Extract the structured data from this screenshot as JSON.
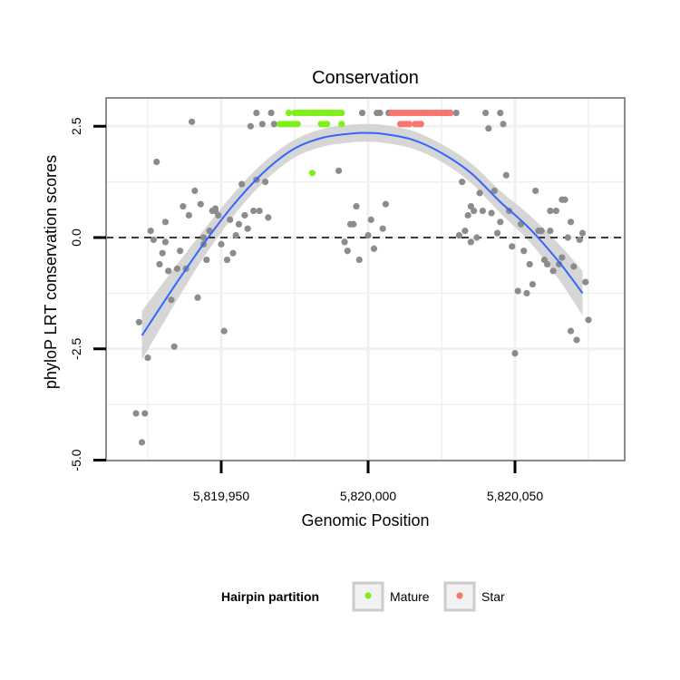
{
  "chart_data": {
    "type": "scatter",
    "title": "Conservation",
    "xlabel": "Genomic Position",
    "ylabel": "phyloP LRT conservation scores",
    "xlim": [
      5819915,
      5820080
    ],
    "ylim": [
      -5,
      3.2
    ],
    "x_ticks": [
      {
        "value": 5819950,
        "label": "5,819,950"
      },
      {
        "value": 5820000,
        "label": "5,820,000"
      },
      {
        "value": 5820050,
        "label": "5,820,050"
      }
    ],
    "y_ticks": [
      {
        "value": 2.5,
        "label": "2.5"
      },
      {
        "value": 0,
        "label": "0.0"
      },
      {
        "value": -2.5,
        "label": "-2.5"
      },
      {
        "value": -5,
        "label": "-5.0"
      }
    ],
    "grid": true,
    "reference_line": {
      "y": 0,
      "style": "dashed"
    },
    "legend": {
      "title": "Hairpin partition",
      "placement": "bottom",
      "entries": [
        {
          "label": "Mature",
          "color": "#7FEF1A"
        },
        {
          "label": "Star",
          "color": "#F8766D"
        }
      ]
    },
    "colors": {
      "other": "#8C8C8C",
      "fit": "#3366FF",
      "band": "#CFCFCF",
      "panel_border": "#8C8C8C"
    },
    "fit": {
      "x": [
        5819923,
        5819935,
        5819945,
        5819955,
        5819965,
        5819975,
        5819985,
        5819995,
        5820000,
        5820005,
        5820015,
        5820025,
        5820035,
        5820045,
        5820055,
        5820065,
        5820073
      ],
      "y": [
        -2.2,
        -1.0,
        -0.05,
        0.8,
        1.5,
        2.0,
        2.25,
        2.34,
        2.35,
        2.33,
        2.2,
        1.9,
        1.45,
        0.8,
        0.2,
        -0.55,
        -1.25
      ],
      "se": [
        0.55,
        0.4,
        0.3,
        0.25,
        0.22,
        0.2,
        0.2,
        0.2,
        0.2,
        0.2,
        0.2,
        0.2,
        0.22,
        0.25,
        0.3,
        0.4,
        0.5
      ]
    },
    "series": [
      {
        "name": "Mature",
        "color": "#7FEF1A",
        "points": [
          [
            5819973,
            2.8
          ],
          [
            5819975,
            2.8
          ],
          [
            5819976,
            2.8
          ],
          [
            5819977,
            2.8
          ],
          [
            5819978,
            2.8
          ],
          [
            5819979,
            2.8
          ],
          [
            5819980,
            2.8
          ],
          [
            5819981,
            2.8
          ],
          [
            5819982,
            2.8
          ],
          [
            5819983,
            2.8
          ],
          [
            5819984,
            2.8
          ],
          [
            5819985,
            2.8
          ],
          [
            5819986,
            2.8
          ],
          [
            5819987,
            2.8
          ],
          [
            5819988,
            2.8
          ],
          [
            5819989,
            2.8
          ],
          [
            5819990,
            2.8
          ],
          [
            5819991,
            2.8
          ],
          [
            5819970,
            2.55
          ],
          [
            5819971,
            2.55
          ],
          [
            5819972,
            2.55
          ],
          [
            5819973,
            2.55
          ],
          [
            5819974,
            2.55
          ],
          [
            5819975,
            2.55
          ],
          [
            5819976,
            2.55
          ],
          [
            5819984,
            2.55
          ],
          [
            5819985,
            2.55
          ],
          [
            5819986,
            2.55
          ],
          [
            5819991,
            2.55
          ],
          [
            5819981,
            1.45
          ]
        ]
      },
      {
        "name": "Star",
        "color": "#F8766D",
        "points": [
          [
            5820008,
            2.8
          ],
          [
            5820009,
            2.8
          ],
          [
            5820010,
            2.8
          ],
          [
            5820011,
            2.8
          ],
          [
            5820012,
            2.8
          ],
          [
            5820013,
            2.8
          ],
          [
            5820014,
            2.8
          ],
          [
            5820015,
            2.8
          ],
          [
            5820016,
            2.8
          ],
          [
            5820017,
            2.8
          ],
          [
            5820018,
            2.8
          ],
          [
            5820019,
            2.8
          ],
          [
            5820020,
            2.8
          ],
          [
            5820021,
            2.8
          ],
          [
            5820022,
            2.8
          ],
          [
            5820023,
            2.8
          ],
          [
            5820024,
            2.8
          ],
          [
            5820025,
            2.8
          ],
          [
            5820026,
            2.8
          ],
          [
            5820027,
            2.8
          ],
          [
            5820028,
            2.8
          ],
          [
            5820011,
            2.55
          ],
          [
            5820012,
            2.55
          ],
          [
            5820013,
            2.55
          ],
          [
            5820014,
            2.55
          ],
          [
            5820016,
            2.55
          ],
          [
            5820017,
            2.55
          ],
          [
            5820018,
            2.55
          ]
        ]
      },
      {
        "name": "",
        "color": "#8C8C8C",
        "points": [
          [
            5819921,
            -3.95
          ],
          [
            5819922,
            -1.9
          ],
          [
            5819923,
            -4.6
          ],
          [
            5819924,
            -3.95
          ],
          [
            5819925,
            -2.7
          ],
          [
            5819926,
            0.15
          ],
          [
            5819927,
            -0.05
          ],
          [
            5819928,
            1.7
          ],
          [
            5819929,
            -0.6
          ],
          [
            5819930,
            -0.35
          ],
          [
            5819931,
            0.35
          ],
          [
            5819932,
            -0.75
          ],
          [
            5819933,
            -1.4
          ],
          [
            5819934,
            -2.45
          ],
          [
            5819935,
            -0.7
          ],
          [
            5819936,
            -0.3
          ],
          [
            5819937,
            0.7
          ],
          [
            5819938,
            -0.7
          ],
          [
            5819939,
            0.5
          ],
          [
            5819940,
            2.6
          ],
          [
            5819941,
            1.05
          ],
          [
            5819942,
            -1.35
          ],
          [
            5819943,
            0.75
          ],
          [
            5819944,
            0.0
          ],
          [
            5819945,
            -0.5
          ],
          [
            5819946,
            0.15
          ],
          [
            5819947,
            0.6
          ],
          [
            5819948,
            0.6
          ],
          [
            5819949,
            0.5
          ],
          [
            5819950,
            -0.15
          ],
          [
            5819951,
            -2.1
          ],
          [
            5819952,
            -0.5
          ],
          [
            5819953,
            0.4
          ],
          [
            5819954,
            -0.35
          ],
          [
            5819955,
            0.05
          ],
          [
            5819956,
            0.3
          ],
          [
            5819957,
            1.2
          ],
          [
            5819958,
            0.5
          ],
          [
            5819959,
            0.2
          ],
          [
            5819960,
            2.5
          ],
          [
            5819961,
            0.6
          ],
          [
            5819962,
            2.8
          ],
          [
            5819963,
            0.6
          ],
          [
            5819964,
            2.55
          ],
          [
            5819965,
            1.25
          ],
          [
            5819966,
            0.45
          ],
          [
            5819967,
            2.8
          ],
          [
            5819968,
            2.55
          ],
          [
            5819990,
            1.5
          ],
          [
            5819992,
            -0.1
          ],
          [
            5819993,
            -0.3
          ],
          [
            5819994,
            0.3
          ],
          [
            5819995,
            0.3
          ],
          [
            5819996,
            0.7
          ],
          [
            5819997,
            -0.5
          ],
          [
            5819998,
            2.8
          ],
          [
            5820000,
            0.05
          ],
          [
            5820001,
            0.4
          ],
          [
            5820002,
            -0.25
          ],
          [
            5820003,
            2.8
          ],
          [
            5820004,
            2.8
          ],
          [
            5820005,
            0.2
          ],
          [
            5820006,
            0.75
          ],
          [
            5820007,
            2.8
          ],
          [
            5820030,
            2.8
          ],
          [
            5820031,
            0.05
          ],
          [
            5820032,
            1.25
          ],
          [
            5820033,
            0.15
          ],
          [
            5820034,
            0.5
          ],
          [
            5820035,
            -0.1
          ],
          [
            5820036,
            0.6
          ],
          [
            5820037,
            0.0
          ],
          [
            5820038,
            1.0
          ],
          [
            5820039,
            0.6
          ],
          [
            5820040,
            2.8
          ],
          [
            5820041,
            2.45
          ],
          [
            5820042,
            0.55
          ],
          [
            5820043,
            1.05
          ],
          [
            5820044,
            0.1
          ],
          [
            5820045,
            2.8
          ],
          [
            5820046,
            2.55
          ],
          [
            5820047,
            1.4
          ],
          [
            5820048,
            0.6
          ],
          [
            5820049,
            -0.2
          ],
          [
            5820050,
            -2.6
          ],
          [
            5820051,
            -1.2
          ],
          [
            5820052,
            0.3
          ],
          [
            5820053,
            -0.3
          ],
          [
            5820054,
            -1.25
          ],
          [
            5820055,
            -0.6
          ],
          [
            5820056,
            -1.05
          ],
          [
            5820057,
            1.05
          ],
          [
            5820058,
            0.15
          ],
          [
            5820059,
            0.15
          ],
          [
            5820060,
            -0.5
          ],
          [
            5820061,
            -0.6
          ],
          [
            5820062,
            0.6
          ],
          [
            5820063,
            -0.75
          ],
          [
            5820064,
            0.6
          ],
          [
            5820065,
            -0.6
          ],
          [
            5820066,
            0.85
          ],
          [
            5820067,
            0.85
          ],
          [
            5820068,
            0.0
          ],
          [
            5820069,
            -2.1
          ],
          [
            5820070,
            -0.65
          ],
          [
            5820071,
            -2.3
          ],
          [
            5820072,
            -0.05
          ],
          [
            5820073,
            0.1
          ],
          [
            5820074,
            -1.0
          ],
          [
            5820075,
            -1.85
          ],
          [
            5820069,
            0.35
          ],
          [
            5820062,
            0.15
          ],
          [
            5820066,
            -0.45
          ],
          [
            5820045,
            0.35
          ],
          [
            5820027,
            2.8
          ],
          [
            5819931,
            -0.1
          ],
          [
            5819944,
            -0.15
          ],
          [
            5819948,
            0.65
          ],
          [
            5820035,
            0.7
          ],
          [
            5819962,
            1.3
          ]
        ]
      }
    ]
  }
}
